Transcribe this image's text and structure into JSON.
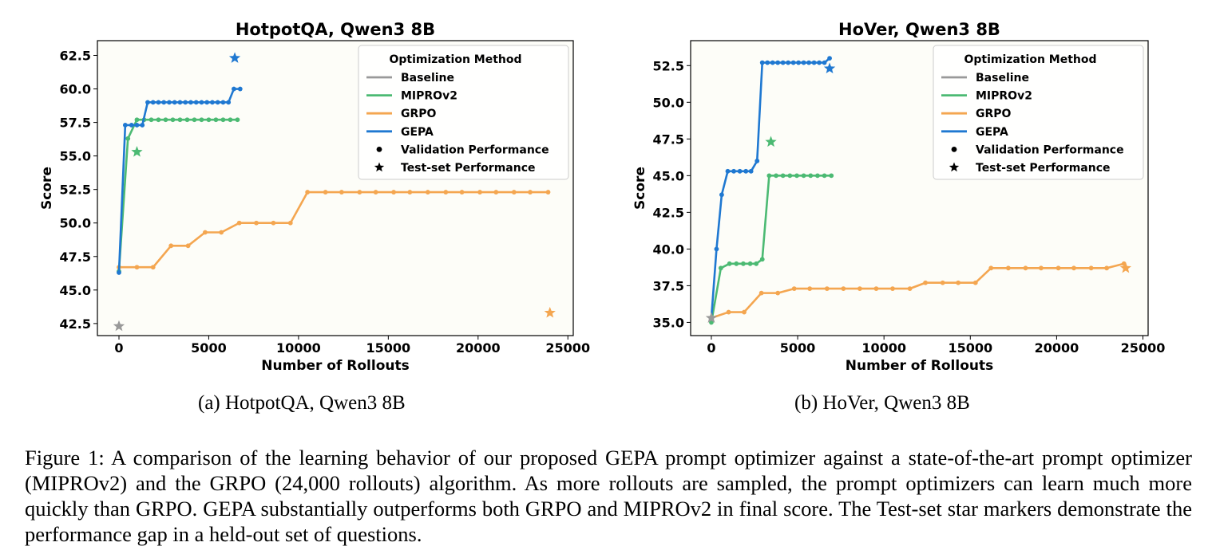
{
  "colors": {
    "baseline": "#999999",
    "miprov2": "#4cba73",
    "grpo": "#f4a650",
    "gepa": "#1f78d1",
    "plot_bg": "#fdfdf8"
  },
  "legend": {
    "title": "Optimization Method",
    "entries": [
      "Baseline",
      "MIPROv2",
      "GRPO",
      "GEPA"
    ],
    "marker_entries": [
      "Validation Performance",
      "Test-set Performance"
    ]
  },
  "subcaptions": {
    "a": "(a) HotpotQA, Qwen3 8B",
    "b": "(b) HoVer, Qwen3 8B"
  },
  "caption": "Figure 1: A comparison of the learning behavior of our proposed GEPA prompt optimizer against a state-of-the-art prompt optimizer (MIPROv2) and the GRPO (24,000 rollouts) algorithm. As more rollouts are sampled, the prompt optimizers can learn much more quickly than GRPO. GEPA substantially outperforms both GRPO and MIPROv2 in final score. The Test-set star markers demonstrate the performance gap in a held-out set of questions.",
  "chart_data": [
    {
      "type": "line",
      "title": "HotpotQA, Qwen3 8B",
      "xlabel": "Number of Rollouts",
      "ylabel": "Score",
      "xlim": [
        -1200,
        25300
      ],
      "ylim": [
        41.6,
        63.6
      ],
      "xticks": [
        0,
        5000,
        10000,
        15000,
        20000,
        25000
      ],
      "yticks": [
        42.5,
        45.0,
        47.5,
        50.0,
        52.5,
        55.0,
        57.5,
        60.0,
        62.5
      ],
      "ytick_labels": [
        "42.5",
        "45.0",
        "47.5",
        "50.0",
        "52.5",
        "55.0",
        "57.5",
        "60.0",
        "62.5"
      ],
      "legend_position": "top-right",
      "grid": false,
      "series": [
        {
          "name": "GRPO",
          "x": [
            0,
            1000,
            1900,
            2900,
            3850,
            4800,
            5700,
            6700,
            7650,
            8600,
            9550,
            10500,
            11500,
            12400,
            13400,
            14300,
            15300,
            16200,
            17200,
            18200,
            19100,
            20100,
            21000,
            22000,
            22900,
            23900
          ],
          "y": [
            46.7,
            46.7,
            46.7,
            48.3,
            48.3,
            49.3,
            49.3,
            50.0,
            50.0,
            50.0,
            50.0,
            52.3,
            52.3,
            52.3,
            52.3,
            52.3,
            52.3,
            52.3,
            52.3,
            52.3,
            52.3,
            52.3,
            52.3,
            52.3,
            52.3,
            52.3
          ]
        },
        {
          "name": "MIPROv2",
          "x": [
            0,
            500,
            1000,
            1400,
            1800,
            2200,
            2600,
            3000,
            3400,
            3800,
            4200,
            4600,
            5000,
            5400,
            5800,
            6200,
            6600
          ],
          "y": [
            46.4,
            56.3,
            57.7,
            57.7,
            57.7,
            57.7,
            57.7,
            57.7,
            57.7,
            57.7,
            57.7,
            57.7,
            57.7,
            57.7,
            57.7,
            57.7,
            57.7
          ]
        },
        {
          "name": "GEPA",
          "x": [
            0,
            350,
            700,
            1000,
            1300,
            1600,
            1900,
            2200,
            2500,
            2800,
            3100,
            3400,
            3700,
            4000,
            4300,
            4600,
            4900,
            5200,
            5500,
            5800,
            6100,
            6400,
            6750
          ],
          "y": [
            46.3,
            57.3,
            57.3,
            57.3,
            57.3,
            59.0,
            59.0,
            59.0,
            59.0,
            59.0,
            59.0,
            59.0,
            59.0,
            59.0,
            59.0,
            59.0,
            59.0,
            59.0,
            59.0,
            59.0,
            59.0,
            60.0,
            60.0
          ]
        }
      ],
      "test_points": [
        {
          "name": "Baseline",
          "x": 0,
          "y": 42.3
        },
        {
          "name": "MIPROv2",
          "x": 1000,
          "y": 55.3
        },
        {
          "name": "GEPA",
          "x": 6450,
          "y": 62.3
        },
        {
          "name": "GRPO",
          "x": 24000,
          "y": 43.3
        }
      ]
    },
    {
      "type": "line",
      "title": "HoVer, Qwen3 8B",
      "xlabel": "Number of Rollouts",
      "ylabel": "Score",
      "xlim": [
        -1200,
        25300
      ],
      "ylim": [
        34.1,
        54.2
      ],
      "xticks": [
        0,
        5000,
        10000,
        15000,
        20000,
        25000
      ],
      "yticks": [
        35.0,
        37.5,
        40.0,
        42.5,
        45.0,
        47.5,
        50.0,
        52.5
      ],
      "ytick_labels": [
        "35.0",
        "37.5",
        "40.0",
        "42.5",
        "45.0",
        "47.5",
        "50.0",
        "52.5"
      ],
      "legend_position": "top-right",
      "grid": false,
      "series": [
        {
          "name": "GRPO",
          "x": [
            0,
            1000,
            1900,
            2900,
            3850,
            4800,
            5700,
            6700,
            7650,
            8600,
            9550,
            10500,
            11500,
            12400,
            13400,
            14300,
            15300,
            16200,
            17200,
            18200,
            19100,
            20100,
            21000,
            22000,
            22900,
            23900
          ],
          "y": [
            35.3,
            35.7,
            35.7,
            37.0,
            37.0,
            37.3,
            37.3,
            37.3,
            37.3,
            37.3,
            37.3,
            37.3,
            37.3,
            37.7,
            37.7,
            37.7,
            37.7,
            38.7,
            38.7,
            38.7,
            38.7,
            38.7,
            38.7,
            38.7,
            38.7,
            39.0
          ]
        },
        {
          "name": "MIPROv2",
          "x": [
            0,
            550,
            1050,
            1450,
            1850,
            2250,
            2600,
            2950,
            3350,
            3750,
            4150,
            4550,
            4950,
            5350,
            5750,
            6150,
            6550,
            6950
          ],
          "y": [
            35.0,
            38.7,
            39.0,
            39.0,
            39.0,
            39.0,
            39.0,
            39.3,
            45.0,
            45.0,
            45.0,
            45.0,
            45.0,
            45.0,
            45.0,
            45.0,
            45.0,
            45.0
          ]
        },
        {
          "name": "GEPA",
          "x": [
            0,
            300,
            600,
            950,
            1300,
            1650,
            2000,
            2300,
            2650,
            2950,
            3250,
            3550,
            3850,
            4150,
            4450,
            4750,
            5050,
            5350,
            5650,
            5950,
            6250,
            6550,
            6850
          ],
          "y": [
            35.3,
            40.0,
            43.7,
            45.3,
            45.3,
            45.3,
            45.3,
            45.3,
            46.0,
            52.7,
            52.7,
            52.7,
            52.7,
            52.7,
            52.7,
            52.7,
            52.7,
            52.7,
            52.7,
            52.7,
            52.7,
            52.7,
            53.0
          ]
        }
      ],
      "test_points": [
        {
          "name": "Baseline",
          "x": 0,
          "y": 35.3
        },
        {
          "name": "MIPROv2",
          "x": 3450,
          "y": 47.3
        },
        {
          "name": "GEPA",
          "x": 6850,
          "y": 52.3
        },
        {
          "name": "GRPO",
          "x": 24000,
          "y": 38.7
        }
      ]
    }
  ]
}
